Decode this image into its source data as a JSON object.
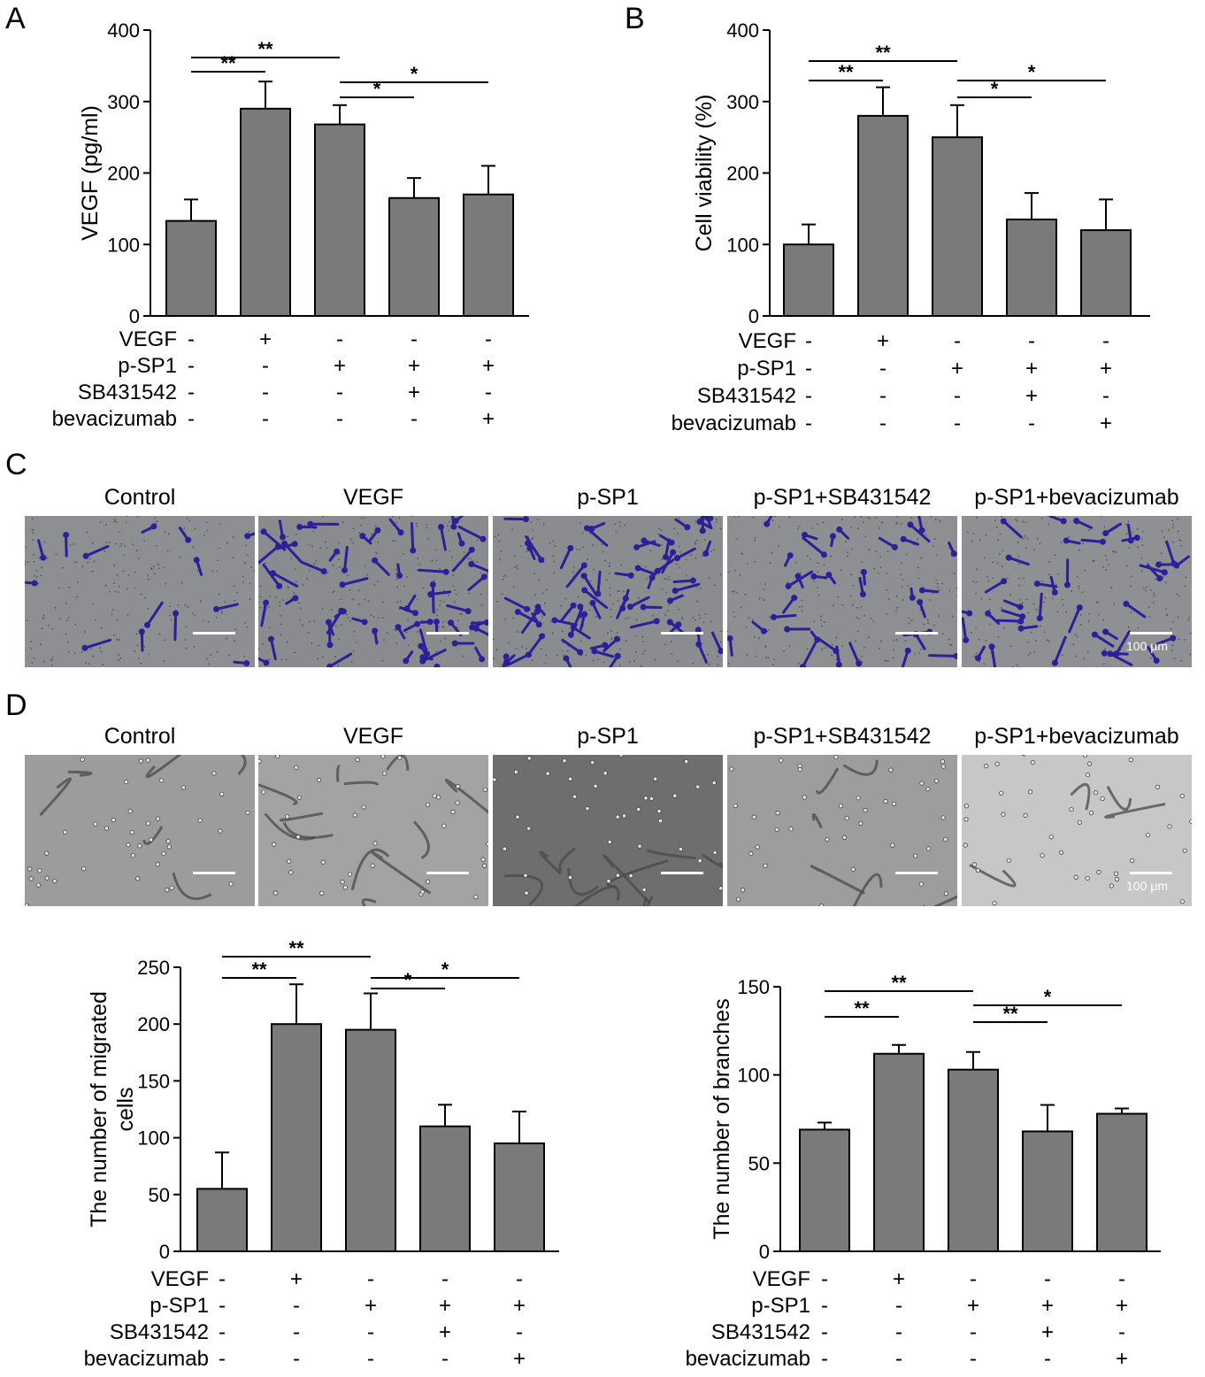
{
  "panels": {
    "A": "A",
    "B": "B",
    "C": "C",
    "D": "D"
  },
  "image_titles": [
    "Control",
    "VEGF",
    "p-SP1",
    "p-SP1+SB431542",
    "p-SP1+bevacizumab"
  ],
  "scale_bar_label": "100 μm",
  "colors": {
    "bar_fill": "#7a7a7a",
    "crystal_violet": "#2b1f9a",
    "field_gray": "#8c8c8c"
  },
  "chart_data": [
    {
      "type": "bar",
      "panel": "A",
      "ylabel": "VEGF (pg/ml)",
      "ylim": [
        0,
        400
      ],
      "yticks": [
        "0",
        "100",
        "200",
        "300",
        "400"
      ],
      "values": [
        133,
        290,
        268,
        165,
        170
      ],
      "errors": [
        30,
        38,
        27,
        28,
        40
      ],
      "condition_labels": [
        "VEGF",
        "p-SP1",
        "SB431542",
        "bevacizumab"
      ],
      "conditions": [
        [
          "-",
          "+",
          "-",
          "-",
          "-"
        ],
        [
          "-",
          "-",
          "+",
          "+",
          "+"
        ],
        [
          "-",
          "-",
          "-",
          "+",
          "-"
        ],
        [
          "-",
          "-",
          "-",
          "-",
          "+"
        ]
      ],
      "significance": [
        {
          "from": 0,
          "to": 1,
          "label": "**"
        },
        {
          "from": 0,
          "to": 2,
          "label": "**"
        },
        {
          "from": 2,
          "to": 3,
          "label": "*"
        },
        {
          "from": 2,
          "to": 4,
          "label": "*"
        }
      ]
    },
    {
      "type": "bar",
      "panel": "B",
      "ylabel": "Cell viability (%)",
      "ylim": [
        0,
        400
      ],
      "yticks": [
        "0",
        "100",
        "200",
        "300",
        "400"
      ],
      "values": [
        100,
        280,
        250,
        135,
        120
      ],
      "errors": [
        28,
        40,
        45,
        37,
        43
      ],
      "condition_labels": [
        "VEGF",
        "p-SP1",
        "SB431542",
        "bevacizumab"
      ],
      "conditions": [
        [
          "-",
          "+",
          "-",
          "-",
          "-"
        ],
        [
          "-",
          "-",
          "+",
          "+",
          "+"
        ],
        [
          "-",
          "-",
          "-",
          "+",
          "-"
        ],
        [
          "-",
          "-",
          "-",
          "-",
          "+"
        ]
      ],
      "significance": [
        {
          "from": 0,
          "to": 1,
          "label": "**"
        },
        {
          "from": 0,
          "to": 2,
          "label": "**"
        },
        {
          "from": 2,
          "to": 3,
          "label": "*"
        },
        {
          "from": 2,
          "to": 4,
          "label": "*"
        }
      ]
    },
    {
      "type": "bar",
      "panel": "D-migration",
      "ylabel_lines": [
        "The number of migrated",
        "cells"
      ],
      "ylim": [
        0,
        250
      ],
      "yticks": [
        "0",
        "50",
        "100",
        "150",
        "200",
        "250"
      ],
      "values": [
        55,
        200,
        195,
        110,
        95
      ],
      "errors": [
        32,
        35,
        32,
        19,
        28
      ],
      "condition_labels": [
        "VEGF",
        "p-SP1",
        "SB431542",
        "bevacizumab"
      ],
      "conditions": [
        [
          "-",
          "+",
          "-",
          "-",
          "-"
        ],
        [
          "-",
          "-",
          "+",
          "+",
          "+"
        ],
        [
          "-",
          "-",
          "-",
          "+",
          "-"
        ],
        [
          "-",
          "-",
          "-",
          "-",
          "+"
        ]
      ],
      "significance": [
        {
          "from": 0,
          "to": 1,
          "label": "**"
        },
        {
          "from": 0,
          "to": 2,
          "label": "**"
        },
        {
          "from": 2,
          "to": 3,
          "label": "*"
        },
        {
          "from": 2,
          "to": 4,
          "label": "*"
        }
      ]
    },
    {
      "type": "bar",
      "panel": "D-branches",
      "ylabel": "The number of branches",
      "ylim": [
        0,
        150
      ],
      "yticks": [
        "0",
        "50",
        "100",
        "150"
      ],
      "values": [
        69,
        112,
        103,
        68,
        78
      ],
      "errors": [
        4,
        5,
        10,
        15,
        3
      ],
      "condition_labels": [
        "VEGF",
        "p-SP1",
        "SB431542",
        "bevacizumab"
      ],
      "conditions": [
        [
          "-",
          "+",
          "-",
          "-",
          "-"
        ],
        [
          "-",
          "-",
          "+",
          "+",
          "+"
        ],
        [
          "-",
          "-",
          "-",
          "+",
          "-"
        ],
        [
          "-",
          "-",
          "-",
          "-",
          "+"
        ]
      ],
      "significance": [
        {
          "from": 0,
          "to": 1,
          "label": "**"
        },
        {
          "from": 0,
          "to": 2,
          "label": "**"
        },
        {
          "from": 2,
          "to": 3,
          "label": "**"
        },
        {
          "from": 2,
          "to": 4,
          "label": "*"
        }
      ]
    }
  ]
}
